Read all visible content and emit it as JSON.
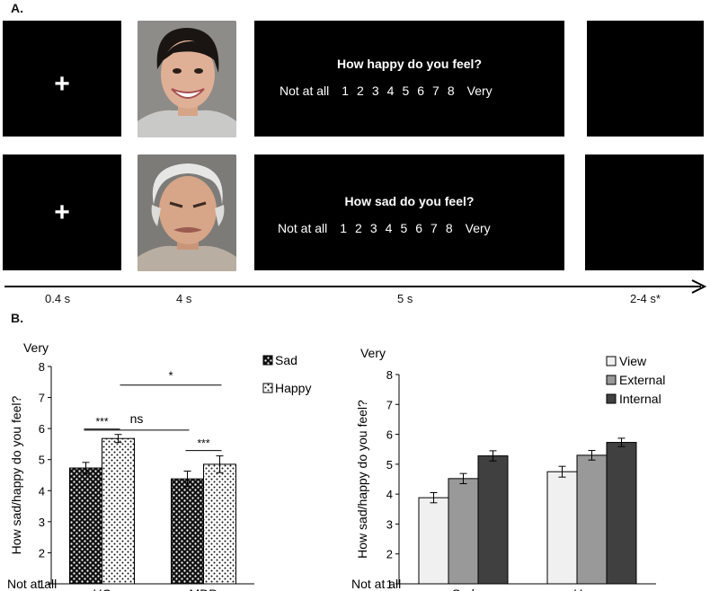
{
  "panel_a": {
    "label": "A.",
    "fixation_symbol": "+",
    "trial_happy": {
      "question": "How happy do you feel?",
      "scale_low": "Not at all",
      "scale_numbers": [
        "1",
        "2",
        "3",
        "4",
        "5",
        "6",
        "7",
        "8"
      ],
      "scale_high": "Very"
    },
    "trial_sad": {
      "question": "How sad do you feel?",
      "scale_low": "Not at all",
      "scale_numbers": [
        "1",
        "2",
        "3",
        "4",
        "5",
        "6",
        "7",
        "8"
      ],
      "scale_high": "Very"
    },
    "timeline": {
      "t1": "0.4 s",
      "t2": "4 s",
      "t3": "5 s",
      "t4": "2-4 s*"
    }
  },
  "panel_b": {
    "label": "B."
  },
  "chart_data": [
    {
      "type": "bar",
      "categories": [
        "HC",
        "MDD"
      ],
      "series": [
        {
          "name": "Sad",
          "values": [
            4.73,
            4.38
          ],
          "errors": [
            0.18,
            0.25
          ],
          "pattern": "checker-dark"
        },
        {
          "name": "Happy",
          "values": [
            5.68,
            4.85
          ],
          "errors": [
            0.13,
            0.27
          ],
          "pattern": "dots-light"
        }
      ],
      "ylabel": "How sad/happy do you feel?",
      "ylim": [
        1,
        8
      ],
      "yticks": [
        "1",
        "2",
        "3",
        "4",
        "5",
        "6",
        "7",
        "8"
      ],
      "top_anchor": "Very",
      "bottom_anchor": "Not at all",
      "legend": "top-right",
      "significance": [
        {
          "text": "***"
        },
        {
          "text": "***"
        },
        {
          "text": "ns"
        },
        {
          "text": "*"
        }
      ]
    },
    {
      "type": "bar",
      "categories": [
        "Sad",
        "Happy"
      ],
      "series": [
        {
          "name": "View",
          "values": [
            3.88,
            4.75
          ],
          "errors": [
            0.17,
            0.18
          ],
          "color": "#f0f0f0"
        },
        {
          "name": "External",
          "values": [
            4.52,
            5.3
          ],
          "errors": [
            0.17,
            0.16
          ],
          "color": "#999999"
        },
        {
          "name": "Internal",
          "values": [
            5.28,
            5.73
          ],
          "errors": [
            0.17,
            0.14
          ],
          "color": "#404040"
        }
      ],
      "ylabel": "How sad/happy do you feel?",
      "ylim": [
        1,
        8
      ],
      "yticks": [
        "1",
        "2",
        "3",
        "4",
        "5",
        "6",
        "7",
        "8"
      ],
      "top_anchor": "Very",
      "bottom_anchor": "Not at all",
      "legend": "top-right"
    }
  ]
}
